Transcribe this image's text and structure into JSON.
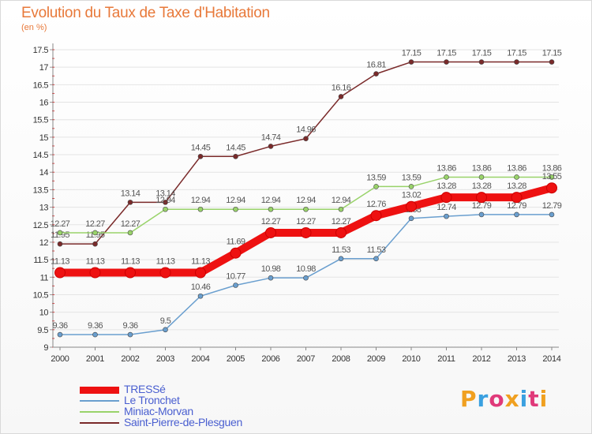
{
  "header": {
    "title": "Evolution du Taux de Taxe d'Habitation",
    "unit": "(en %)"
  },
  "brand": {
    "text": "Proxiti",
    "colors": [
      "#f0a020",
      "#3aa0e0",
      "#e03a7a",
      "#f0a020",
      "#3aa0e0",
      "#e03a7a",
      "#f0a020"
    ]
  },
  "chart_data": {
    "type": "line",
    "title": "Evolution du Taux de Taxe d'Habitation",
    "ylabel": "(en %)",
    "x": [
      "2000",
      "2001",
      "2002",
      "2003",
      "2004",
      "2005",
      "2006",
      "2007",
      "2008",
      "2009",
      "2010",
      "2011",
      "2012",
      "2013",
      "2014"
    ],
    "ylim": [
      9,
      17.5
    ],
    "yticks": [
      "9",
      "9.5",
      "10",
      "10.5",
      "11",
      "11.5",
      "12",
      "12.5",
      "13",
      "13.5",
      "14",
      "14.5",
      "15",
      "15.5",
      "16",
      "16.5",
      "17",
      "17.5"
    ],
    "grid": true,
    "legend_position": "bottom-left",
    "series": [
      {
        "name": "TRESSé",
        "color": "#ee1111",
        "emphasis": true,
        "values": [
          11.13,
          11.13,
          11.13,
          11.13,
          11.13,
          11.69,
          12.27,
          12.27,
          12.27,
          12.76,
          13.02,
          13.28,
          13.28,
          13.28,
          13.55
        ]
      },
      {
        "name": "Le Tronchet",
        "color": "#6a9fcf",
        "emphasis": false,
        "values": [
          9.36,
          9.36,
          9.36,
          9.5,
          10.46,
          10.77,
          10.98,
          10.98,
          11.53,
          11.53,
          12.68,
          12.74,
          12.79,
          12.79,
          12.79
        ]
      },
      {
        "name": "Miniac-Morvan",
        "color": "#99d36a",
        "emphasis": false,
        "values": [
          12.27,
          12.27,
          12.27,
          12.94,
          12.94,
          12.94,
          12.94,
          12.94,
          12.94,
          13.59,
          13.59,
          13.86,
          13.86,
          13.86,
          13.86
        ]
      },
      {
        "name": "Saint-Pierre-de-Plesguen",
        "color": "#7a2a2a",
        "emphasis": false,
        "values": [
          11.95,
          11.95,
          13.14,
          13.14,
          14.45,
          14.45,
          14.74,
          14.96,
          16.16,
          16.81,
          17.15,
          17.15,
          17.15,
          17.15,
          17.15
        ]
      }
    ]
  }
}
